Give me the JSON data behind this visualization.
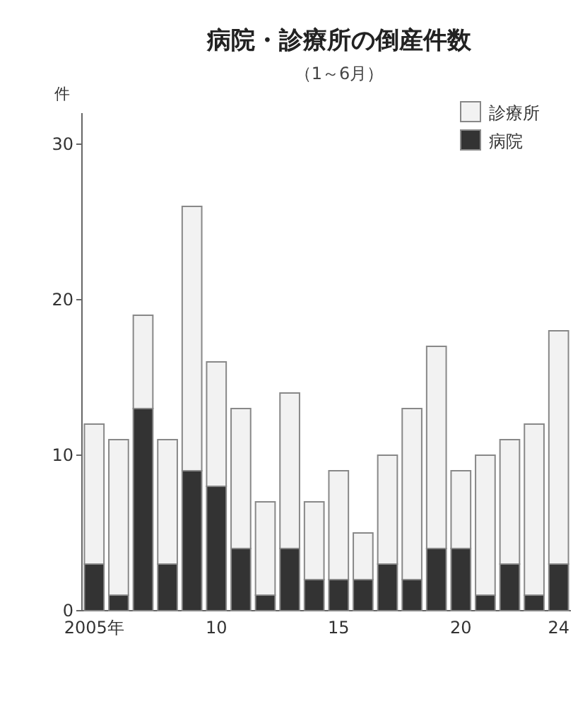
{
  "chart_data": {
    "type": "bar",
    "title": "病院・診療所の倒産件数",
    "subtitle": "（1～6月）",
    "ylabel": "件",
    "categories": [
      "2005年",
      null,
      null,
      null,
      null,
      "10",
      null,
      null,
      null,
      null,
      "15",
      null,
      null,
      null,
      null,
      "20",
      null,
      null,
      null,
      "24"
    ],
    "stacked": true,
    "series": [
      {
        "name": "病院",
        "color": "#333333",
        "values": [
          3,
          1,
          13,
          3,
          9,
          8,
          4,
          1,
          4,
          2,
          2,
          2,
          3,
          2,
          4,
          4,
          1,
          3,
          1,
          3
        ]
      },
      {
        "name": "診療所",
        "color": "#f2f2f2",
        "values": [
          9,
          10,
          6,
          8,
          17,
          8,
          9,
          6,
          10,
          5,
          7,
          3,
          7,
          11,
          13,
          5,
          9,
          8,
          11,
          15
        ]
      }
    ],
    "ylim": [
      0,
      32
    ],
    "yticks": [
      0,
      10,
      20,
      30
    ],
    "grid": false,
    "legend": "top right"
  }
}
